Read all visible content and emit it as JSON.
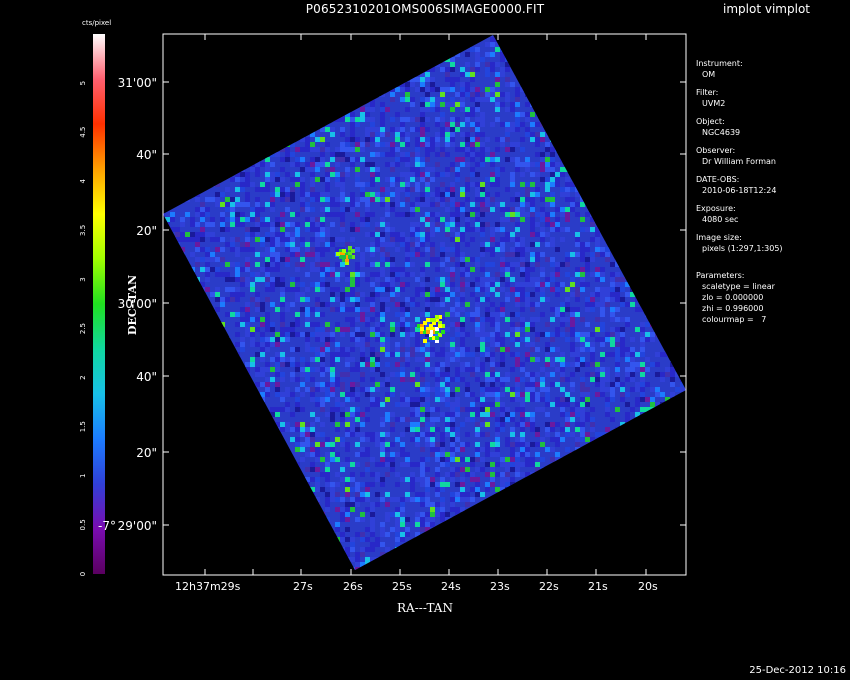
{
  "window": {
    "title": "P0652310201OMS006SIMAGE0000.FIT",
    "task_name": "implot vimplot",
    "timestamp": "25-Dec-2012 10:16"
  },
  "info_panel": [
    {
      "label": "Instrument:",
      "value": "OM"
    },
    {
      "label": "Filter:",
      "value": "UVM2"
    },
    {
      "label": "Object:",
      "value": "NGC4639"
    },
    {
      "label": "Observer:",
      "value": "Dr William Forman"
    },
    {
      "label": "DATE-OBS:",
      "value": "2010-06-18T12:24"
    },
    {
      "label": "Exposure:",
      "value": "4080 sec"
    },
    {
      "label": "Image size:",
      "value": "pixels (1:297,1:305)"
    }
  ],
  "parameters": {
    "label": "Parameters:",
    "lines": [
      "scaletype = linear",
      "zlo = 0.000000",
      "zhi = 0.996000",
      "colourmap =   7"
    ]
  },
  "chart_data": {
    "type": "heatmap",
    "title": "P0652310201OMS006SIMAGE0000.FIT",
    "xlabel": "RA---TAN",
    "ylabel": "DEC--TAN",
    "x_tick_labels": [
      "12h37m29s",
      "27s",
      "26s",
      "25s",
      "24s",
      "23s",
      "22s",
      "21s",
      "20s"
    ],
    "y_tick_labels": [
      "31'00\"",
      "40\"",
      "20\"",
      "30'00\"",
      "40\"",
      "20\"",
      "29'00\""
    ],
    "y_tick_prefix": "-7°",
    "colorbar": {
      "title": "cts/pixel",
      "tick_labels": [
        "0",
        "0.5",
        "1",
        "1.5",
        "2",
        "2.5",
        "3",
        "3.5",
        "4",
        "4.5",
        "5"
      ],
      "range": [
        0,
        5.5
      ],
      "colors": [
        "#5a0060",
        "#7a0cb0",
        "#3040d8",
        "#1c7cff",
        "#18c0e8",
        "#10d8a0",
        "#20e020",
        "#a0ff00",
        "#ffff00",
        "#ffa000",
        "#ff3000",
        "#ff6070",
        "#ffffff"
      ]
    },
    "image": {
      "dominant_color": "#2a3cc8",
      "sources": [
        {
          "name": "central-source",
          "intensity": "high"
        },
        {
          "name": "secondary-source",
          "intensity": "medium"
        }
      ]
    }
  }
}
